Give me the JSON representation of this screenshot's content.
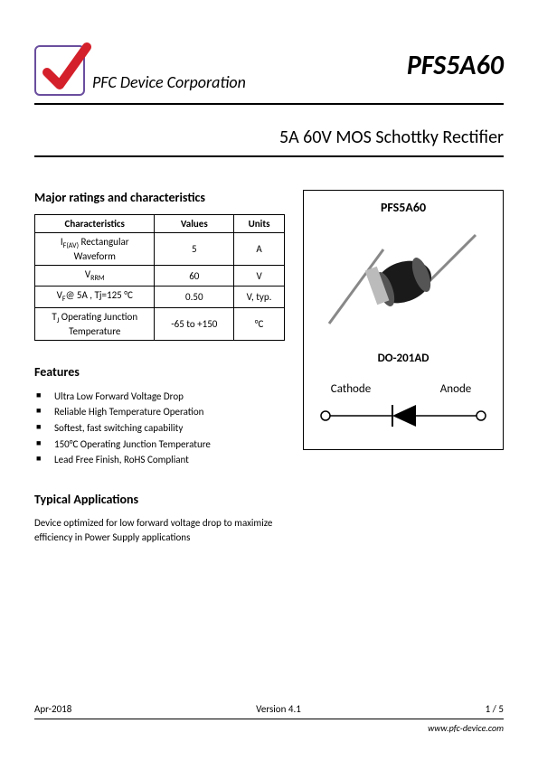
{
  "header": {
    "company": "PFC Device Corporation",
    "part_number": "PFS5A60"
  },
  "title": "5A 60V MOS Schottky Rectifier",
  "ratings": {
    "section_title": "Major ratings and characteristics",
    "columns": [
      "Characteristics",
      "Values",
      "Units"
    ],
    "rows": [
      {
        "char_html": "I<sub>F(AV)</sub> Rectangular<br>Waveform",
        "value": "5",
        "unit": "A"
      },
      {
        "char_html": "V<sub>RRM</sub>",
        "value": "60",
        "unit": "V"
      },
      {
        "char_html": "V<sub>F</sub>@ 5A , Tj=125 °C",
        "value": "0.50",
        "unit": "V, typ."
      },
      {
        "char_html": "T<sub>J</sub> Operating Junction<br>Temperature",
        "value": "-65 to +150",
        "unit": "°C"
      }
    ]
  },
  "features": {
    "section_title": "Features",
    "items": [
      "Ultra Low Forward Voltage Drop",
      "Reliable High Temperature Operation",
      "Softest, fast switching capability",
      "150°C Operating Junction Temperature",
      "Lead Free Finish, RoHS Compliant"
    ]
  },
  "applications": {
    "section_title": "Typical Applications",
    "text": "Device optimized for low forward voltage drop to maximize efficiency in Power Supply applications"
  },
  "package": {
    "title": "PFS5A60",
    "label": "DO-201AD",
    "cathode": "Cathode",
    "anode": "Anode"
  },
  "footer": {
    "date": "Apr-2018",
    "version": "Version 4.1",
    "page": "1 / 5",
    "url": "www.pfc-device.com"
  },
  "colors": {
    "logo_border": "#6a4e9e",
    "check": "#d4202a",
    "text": "#000000",
    "bg": "#ffffff"
  }
}
